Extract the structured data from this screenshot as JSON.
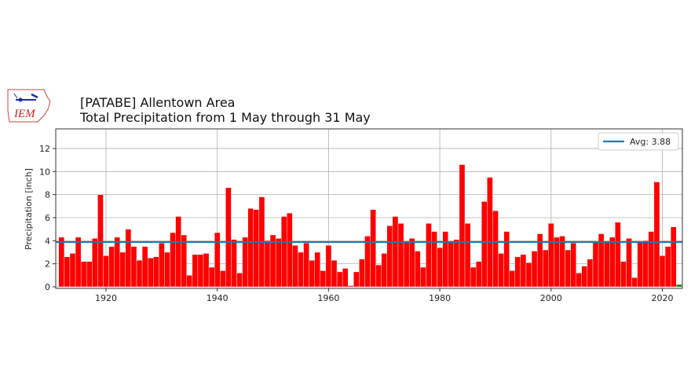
{
  "header": {
    "logo_text": "IEM",
    "title_line1": "[PATABE] Allentown Area",
    "title_line2": "Total Precipitation from 1 May through 31 May"
  },
  "legend": {
    "label": "Avg: 3.88",
    "line_color": "#1f77b4"
  },
  "colors": {
    "bar": "#ff0000",
    "current_bar": "#008000",
    "avg_line": "#1f77b4",
    "grid": "#b0b0b0"
  },
  "chart_data": {
    "type": "bar",
    "title": "[PATABE] Allentown Area — Total Precipitation from 1 May through 31 May",
    "xlabel": "",
    "ylabel": "Precipitation [inch]",
    "ylim": [
      0,
      13.8
    ],
    "xlim": [
      1911,
      2024
    ],
    "yticks": [
      0,
      2,
      4,
      6,
      8,
      10,
      12
    ],
    "xticks": [
      1920,
      1940,
      1960,
      1980,
      2000,
      2020
    ],
    "grid": true,
    "legend_position": "upper right",
    "average": 3.88,
    "average_label": "Avg: 3.88",
    "x": [
      1912,
      1913,
      1914,
      1915,
      1916,
      1917,
      1918,
      1919,
      1920,
      1921,
      1922,
      1923,
      1924,
      1925,
      1926,
      1927,
      1928,
      1929,
      1930,
      1931,
      1932,
      1933,
      1934,
      1935,
      1936,
      1937,
      1938,
      1939,
      1940,
      1941,
      1942,
      1943,
      1944,
      1945,
      1946,
      1947,
      1948,
      1949,
      1950,
      1951,
      1952,
      1953,
      1954,
      1955,
      1956,
      1957,
      1958,
      1959,
      1960,
      1961,
      1962,
      1963,
      1964,
      1965,
      1966,
      1967,
      1968,
      1969,
      1970,
      1971,
      1972,
      1973,
      1974,
      1975,
      1976,
      1977,
      1978,
      1979,
      1980,
      1981,
      1982,
      1983,
      1984,
      1985,
      1986,
      1987,
      1988,
      1989,
      1990,
      1991,
      1992,
      1993,
      1994,
      1995,
      1996,
      1997,
      1998,
      1999,
      2000,
      2001,
      2002,
      2003,
      2004,
      2005,
      2006,
      2007,
      2008,
      2009,
      2010,
      2011,
      2012,
      2013,
      2014,
      2015,
      2016,
      2017,
      2018,
      2019,
      2020,
      2021,
      2022,
      2023
    ],
    "values": [
      4.3,
      2.6,
      2.9,
      4.3,
      2.2,
      2.2,
      4.2,
      8.0,
      2.7,
      3.5,
      4.3,
      3.0,
      5.0,
      3.5,
      2.3,
      3.5,
      2.5,
      2.6,
      3.8,
      3.0,
      4.7,
      6.1,
      4.5,
      1.0,
      2.8,
      2.8,
      2.9,
      1.7,
      4.7,
      1.4,
      8.6,
      4.1,
      1.2,
      4.3,
      6.8,
      6.7,
      7.8,
      4.0,
      4.5,
      4.2,
      6.1,
      6.4,
      3.6,
      3.0,
      3.8,
      2.3,
      3.0,
      1.4,
      3.6,
      2.3,
      1.3,
      1.6,
      0.1,
      1.3,
      2.4,
      4.4,
      6.7,
      1.9,
      2.9,
      5.3,
      6.1,
      5.5,
      3.9,
      4.2,
      3.1,
      1.7,
      5.5,
      4.8,
      3.4,
      4.8,
      3.9,
      4.1,
      10.6,
      5.5,
      1.7,
      2.2,
      7.4,
      9.5,
      6.6,
      2.9,
      4.8,
      1.4,
      2.6,
      2.8,
      2.1,
      3.1,
      4.6,
      3.2,
      5.5,
      4.3,
      4.4,
      3.2,
      3.8,
      1.2,
      1.8,
      2.4,
      3.9,
      4.6,
      3.9,
      4.3,
      5.6,
      2.2,
      4.2,
      0.8,
      3.9,
      4.0,
      4.8,
      9.1,
      2.7,
      3.5,
      5.2,
      0.2
    ],
    "highlight_last": true,
    "series": [
      {
        "name": "Total Precipitation",
        "color": "#ff0000"
      },
      {
        "name": "Avg: 3.88",
        "color": "#1f77b4",
        "type": "hline",
        "value": 3.88
      }
    ]
  }
}
